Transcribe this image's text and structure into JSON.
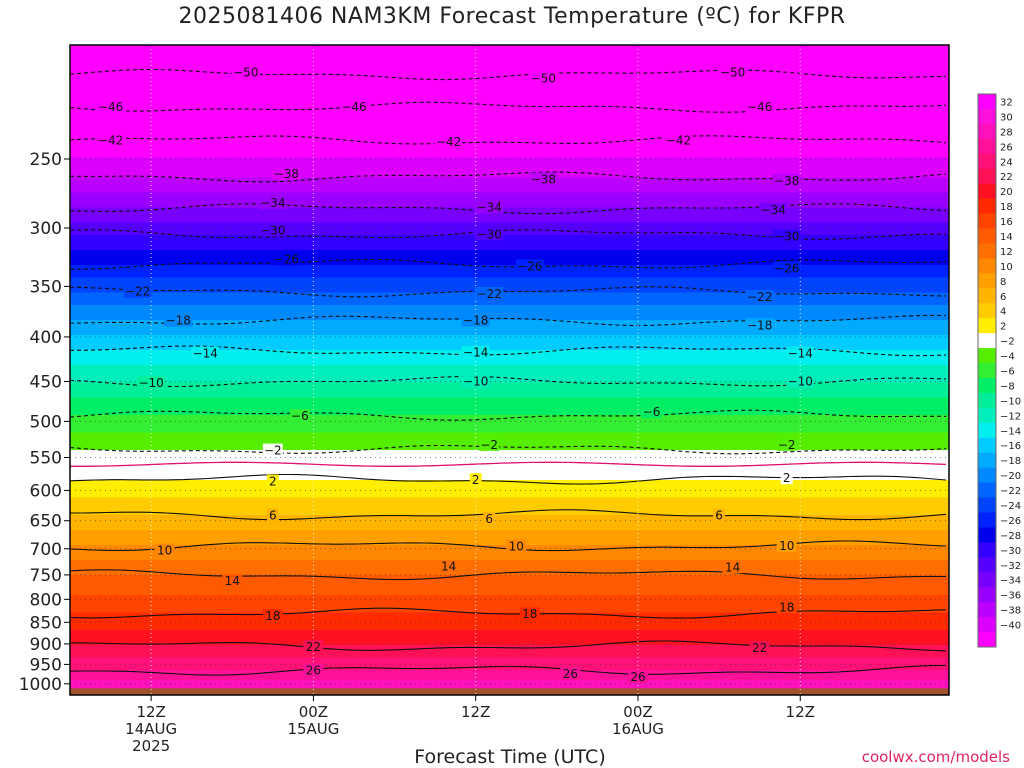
{
  "title": "2025081406 NAM3KM Forecast Temperature (ºC) for KFPR",
  "xlabel": "Forecast Time (UTC)",
  "credit": "coolwx.com/models",
  "chart_data": {
    "type": "heatmap",
    "title": "2025081406 NAM3KM Forecast Temperature (ºC) for KFPR",
    "xlabel": "Forecast Time (UTC)",
    "ylabel": "",
    "y_scale": "log",
    "y_inverted": true,
    "ylim": [
      1030,
      185
    ],
    "xlim": [
      "2025-08-14 06Z",
      "2025-08-16 23Z"
    ],
    "ground_level_hPa": 1012,
    "yticks": [
      250,
      300,
      350,
      400,
      450,
      500,
      550,
      600,
      650,
      700,
      750,
      800,
      850,
      900,
      950,
      1000
    ],
    "xticks": [
      {
        "time": "2025-08-14 12Z",
        "label": [
          "12Z",
          "14AUG",
          "2025"
        ]
      },
      {
        "time": "2025-08-15 00Z",
        "label": [
          "00Z",
          "15AUG"
        ]
      },
      {
        "time": "2025-08-15 12Z",
        "label": [
          "12Z"
        ]
      },
      {
        "time": "2025-08-16 00Z",
        "label": [
          "00Z",
          "16AUG"
        ]
      },
      {
        "time": "2025-08-16 12Z",
        "label": [
          "12Z"
        ]
      }
    ],
    "contour_interval": 4,
    "contour_levels_and_height_hPa": [
      {
        "level": -50,
        "hPa": 200
      },
      {
        "level": -46,
        "hPa": 218
      },
      {
        "level": -42,
        "hPa": 238
      },
      {
        "level": -38,
        "hPa": 262
      },
      {
        "level": -34,
        "hPa": 285
      },
      {
        "level": -30,
        "hPa": 305
      },
      {
        "level": -26,
        "hPa": 330
      },
      {
        "level": -22,
        "hPa": 355
      },
      {
        "level": -18,
        "hPa": 383
      },
      {
        "level": -14,
        "hPa": 415
      },
      {
        "level": -10,
        "hPa": 450
      },
      {
        "level": -6,
        "hPa": 492
      },
      {
        "level": -2,
        "hPa": 538
      },
      {
        "level": 2,
        "hPa": 583
      },
      {
        "level": 6,
        "hPa": 640
      },
      {
        "level": 10,
        "hPa": 695
      },
      {
        "level": 14,
        "hPa": 750
      },
      {
        "level": 18,
        "hPa": 830
      },
      {
        "level": 22,
        "hPa": 905
      },
      {
        "level": 26,
        "hPa": 965
      }
    ],
    "contour_labels": [
      {
        "text": "-50",
        "time": "2025-08-14 19Z",
        "hPa": 199
      },
      {
        "text": "-50",
        "time": "2025-08-15 17Z",
        "hPa": 202
      },
      {
        "text": "-50",
        "time": "2025-08-16 07Z",
        "hPa": 199
      },
      {
        "text": "-46",
        "time": "2025-08-14 09Z",
        "hPa": 218
      },
      {
        "text": "-46",
        "time": "2025-08-15 03Z",
        "hPa": 218
      },
      {
        "text": "-46",
        "time": "2025-08-16 09Z",
        "hPa": 218
      },
      {
        "text": "-42",
        "time": "2025-08-14 09Z",
        "hPa": 238
      },
      {
        "text": "-42",
        "time": "2025-08-15 10Z",
        "hPa": 239
      },
      {
        "text": "-42",
        "time": "2025-08-16 03Z",
        "hPa": 238
      },
      {
        "text": "-38",
        "time": "2025-08-14 22Z",
        "hPa": 260
      },
      {
        "text": "-38",
        "time": "2025-08-15 17Z",
        "hPa": 264
      },
      {
        "text": "-38",
        "time": "2025-08-16 11Z",
        "hPa": 265
      },
      {
        "text": "-34",
        "time": "2025-08-14 21Z",
        "hPa": 281
      },
      {
        "text": "-34",
        "time": "2025-08-15 13Z",
        "hPa": 284
      },
      {
        "text": "-34",
        "time": "2025-08-16 10Z",
        "hPa": 286
      },
      {
        "text": "-30",
        "time": "2025-08-14 21Z",
        "hPa": 302
      },
      {
        "text": "-30",
        "time": "2025-08-15 13Z",
        "hPa": 305
      },
      {
        "text": "-30",
        "time": "2025-08-16 11Z",
        "hPa": 307
      },
      {
        "text": "-26",
        "time": "2025-08-14 22Z",
        "hPa": 326
      },
      {
        "text": "-26",
        "time": "2025-08-15 16Z",
        "hPa": 332
      },
      {
        "text": "-26",
        "time": "2025-08-16 11Z",
        "hPa": 334
      },
      {
        "text": "-22",
        "time": "2025-08-14 11Z",
        "hPa": 355
      },
      {
        "text": "-22",
        "time": "2025-08-15 13Z",
        "hPa": 357
      },
      {
        "text": "-22",
        "time": "2025-08-16 09Z",
        "hPa": 360
      },
      {
        "text": "-18",
        "time": "2025-08-14 14Z",
        "hPa": 383
      },
      {
        "text": "-18",
        "time": "2025-08-15 12Z",
        "hPa": 383
      },
      {
        "text": "-18",
        "time": "2025-08-16 09Z",
        "hPa": 388
      },
      {
        "text": "-14",
        "time": "2025-08-14 16Z",
        "hPa": 418
      },
      {
        "text": "-14",
        "time": "2025-08-15 12Z",
        "hPa": 417
      },
      {
        "text": "-14",
        "time": "2025-08-16 12Z",
        "hPa": 418
      },
      {
        "text": "-10",
        "time": "2025-08-14 12Z",
        "hPa": 452
      },
      {
        "text": "-10",
        "time": "2025-08-15 12Z",
        "hPa": 450
      },
      {
        "text": "-10",
        "time": "2025-08-16 12Z",
        "hPa": 450
      },
      {
        "text": "-6",
        "time": "2025-08-14 23Z",
        "hPa": 493
      },
      {
        "text": "-6",
        "time": "2025-08-16 01Z",
        "hPa": 488
      },
      {
        "text": "-2",
        "time": "2025-08-14 21Z",
        "hPa": 540
      },
      {
        "text": "-2",
        "time": "2025-08-15 13Z",
        "hPa": 532
      },
      {
        "text": "-2",
        "time": "2025-08-16 11Z",
        "hPa": 532
      },
      {
        "text": "2",
        "time": "2025-08-14 21Z",
        "hPa": 586
      },
      {
        "text": "2",
        "time": "2025-08-15 12Z",
        "hPa": 584
      },
      {
        "text": "2",
        "time": "2025-08-16 11Z",
        "hPa": 581
      },
      {
        "text": "6",
        "time": "2025-08-14 21Z",
        "hPa": 641
      },
      {
        "text": "6",
        "time": "2025-08-15 13Z",
        "hPa": 647
      },
      {
        "text": "6",
        "time": "2025-08-16 06Z",
        "hPa": 641
      },
      {
        "text": "10",
        "time": "2025-08-14 13Z",
        "hPa": 703
      },
      {
        "text": "10",
        "time": "2025-08-15 15Z",
        "hPa": 696
      },
      {
        "text": "10",
        "time": "2025-08-16 11Z",
        "hPa": 695
      },
      {
        "text": "14",
        "time": "2025-08-14 18Z",
        "hPa": 762
      },
      {
        "text": "14",
        "time": "2025-08-15 10Z",
        "hPa": 734
      },
      {
        "text": "14",
        "time": "2025-08-16 07Z",
        "hPa": 735
      },
      {
        "text": "18",
        "time": "2025-08-14 21Z",
        "hPa": 836
      },
      {
        "text": "18",
        "time": "2025-08-15 16Z",
        "hPa": 832
      },
      {
        "text": "18",
        "time": "2025-08-16 11Z",
        "hPa": 817
      },
      {
        "text": "22",
        "time": "2025-08-15 00Z",
        "hPa": 907
      },
      {
        "text": "22",
        "time": "2025-08-16 09Z",
        "hPa": 910
      },
      {
        "text": "26",
        "time": "2025-08-15 00Z",
        "hPa": 966
      },
      {
        "text": "26",
        "time": "2025-08-15 19Z",
        "hPa": 975
      },
      {
        "text": "26",
        "time": "2025-08-16 00Z",
        "hPa": 982
      }
    ],
    "colorbar": {
      "labels": [
        "32",
        "30",
        "28",
        "26",
        "24",
        "22",
        "20",
        "18",
        "16",
        "14",
        "12",
        "10",
        "8",
        "6",
        "4",
        "2",
        "−2",
        "−4",
        "−6",
        "−8",
        "−10",
        "−12",
        "−14",
        "−16",
        "−18",
        "−20",
        "−22",
        "−24",
        "−26",
        "−28",
        "−30",
        "−32",
        "−34",
        "−36",
        "−38",
        "−40"
      ],
      "colors": [
        "#ff00ff",
        "#ff11dd",
        "#ff11bb",
        "#ff1199",
        "#ff1177",
        "#ff1155",
        "#ff1122",
        "#ff2a00",
        "#ff4400",
        "#ff5a00",
        "#ff6e00",
        "#ff8800",
        "#ff9f00",
        "#ffb400",
        "#ffcc00",
        "#ffee00",
        "#ffffff",
        "#55ee00",
        "#33ee33",
        "#00ee66",
        "#00ee99",
        "#00eebb",
        "#00eeee",
        "#00ccff",
        "#00aaff",
        "#0088ff",
        "#0066ff",
        "#0044ff",
        "#0022ff",
        "#0000ee",
        "#3300ff",
        "#5500ff",
        "#7700ff",
        "#9900ff",
        "#bb00ff",
        "#dd00ff",
        "#ff00ff"
      ]
    }
  }
}
